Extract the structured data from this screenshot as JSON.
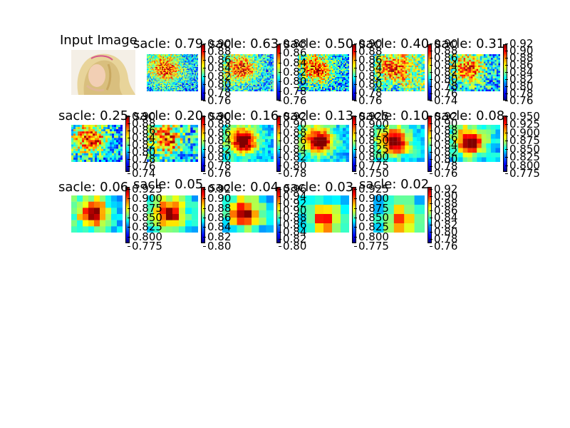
{
  "input": {
    "title": "Input Image"
  },
  "panels": [
    {
      "title": "sacle: 0.79",
      "ticks": [
        "0.90",
        "0.88",
        "0.86",
        "0.84",
        "0.82",
        "0.80",
        "0.78",
        "0.76"
      ]
    },
    {
      "title": "sacle: 0.63",
      "ticks": [
        "0.88",
        "0.86",
        "0.84",
        "0.82",
        "0.80",
        "0.78",
        "0.76"
      ]
    },
    {
      "title": "sacle: 0.50",
      "ticks": [
        "0.90",
        "0.88",
        "0.86",
        "0.84",
        "0.82",
        "0.80",
        "0.78",
        "0.76"
      ]
    },
    {
      "title": "sacle: 0.40",
      "ticks": [
        "0.90",
        "0.88",
        "0.86",
        "0.84",
        "0.82",
        "0.80",
        "0.78",
        "0.76",
        "0.74"
      ]
    },
    {
      "title": "sacle: 0.31",
      "ticks": [
        "0.92",
        "0.90",
        "0.88",
        "0.86",
        "0.84",
        "0.82",
        "0.80",
        "0.78",
        "0.76"
      ]
    },
    {
      "title": "sacle: 0.25",
      "ticks": [
        "0.90",
        "0.88",
        "0.86",
        "0.84",
        "0.82",
        "0.80",
        "0.78",
        "0.76",
        "0.74"
      ]
    },
    {
      "title": "sacle: 0.20",
      "ticks": [
        "0.90",
        "0.88",
        "0.86",
        "0.84",
        "0.82",
        "0.80",
        "0.78",
        "0.76"
      ]
    },
    {
      "title": "sacle: 0.16",
      "ticks": [
        "0.92",
        "0.90",
        "0.88",
        "0.86",
        "0.84",
        "0.82",
        "0.80",
        "0.78"
      ]
    },
    {
      "title": "sacle: 0.13",
      "ticks": [
        "0.925",
        "0.900",
        "0.875",
        "0.850",
        "0.825",
        "0.800",
        "0.775",
        "0.750"
      ]
    },
    {
      "title": "sacle: 0.10",
      "ticks": [
        "0.92",
        "0.90",
        "0.88",
        "0.86",
        "0.84",
        "0.82",
        "0.80",
        "0.78",
        "0.76"
      ]
    },
    {
      "title": "sacle: 0.08",
      "ticks": [
        "0.950",
        "0.925",
        "0.900",
        "0.875",
        "0.850",
        "0.825",
        "0.800",
        "0.775"
      ]
    },
    {
      "title": "sacle: 0.06",
      "ticks": [
        "0.925",
        "0.900",
        "0.875",
        "0.850",
        "0.825",
        "0.800",
        "0.775"
      ]
    },
    {
      "title": "sacle: 0.05",
      "ticks": [
        "0.92",
        "0.90",
        "0.88",
        "0.86",
        "0.84",
        "0.82",
        "0.80"
      ]
    },
    {
      "title": "sacle: 0.04",
      "ticks": [
        "0.96",
        "0.94",
        "0.92",
        "0.90",
        "0.88",
        "0.86",
        "0.84",
        "0.82",
        "0.80"
      ]
    },
    {
      "title": "sacle: 0.03",
      "ticks": [
        "0.925",
        "0.900",
        "0.875",
        "0.850",
        "0.825",
        "0.800",
        "0.775"
      ]
    },
    {
      "title": "sacle: 0.02",
      "ticks": [
        "0.92",
        "0.90",
        "0.88",
        "0.86",
        "0.84",
        "0.82",
        "0.80",
        "0.78",
        "0.76"
      ]
    }
  ],
  "colormap": "jet",
  "icons": {
    "input_image": "portrait-photo",
    "heatmap": "saliency-heatmap",
    "colorbar": "jet-colorbar"
  }
}
